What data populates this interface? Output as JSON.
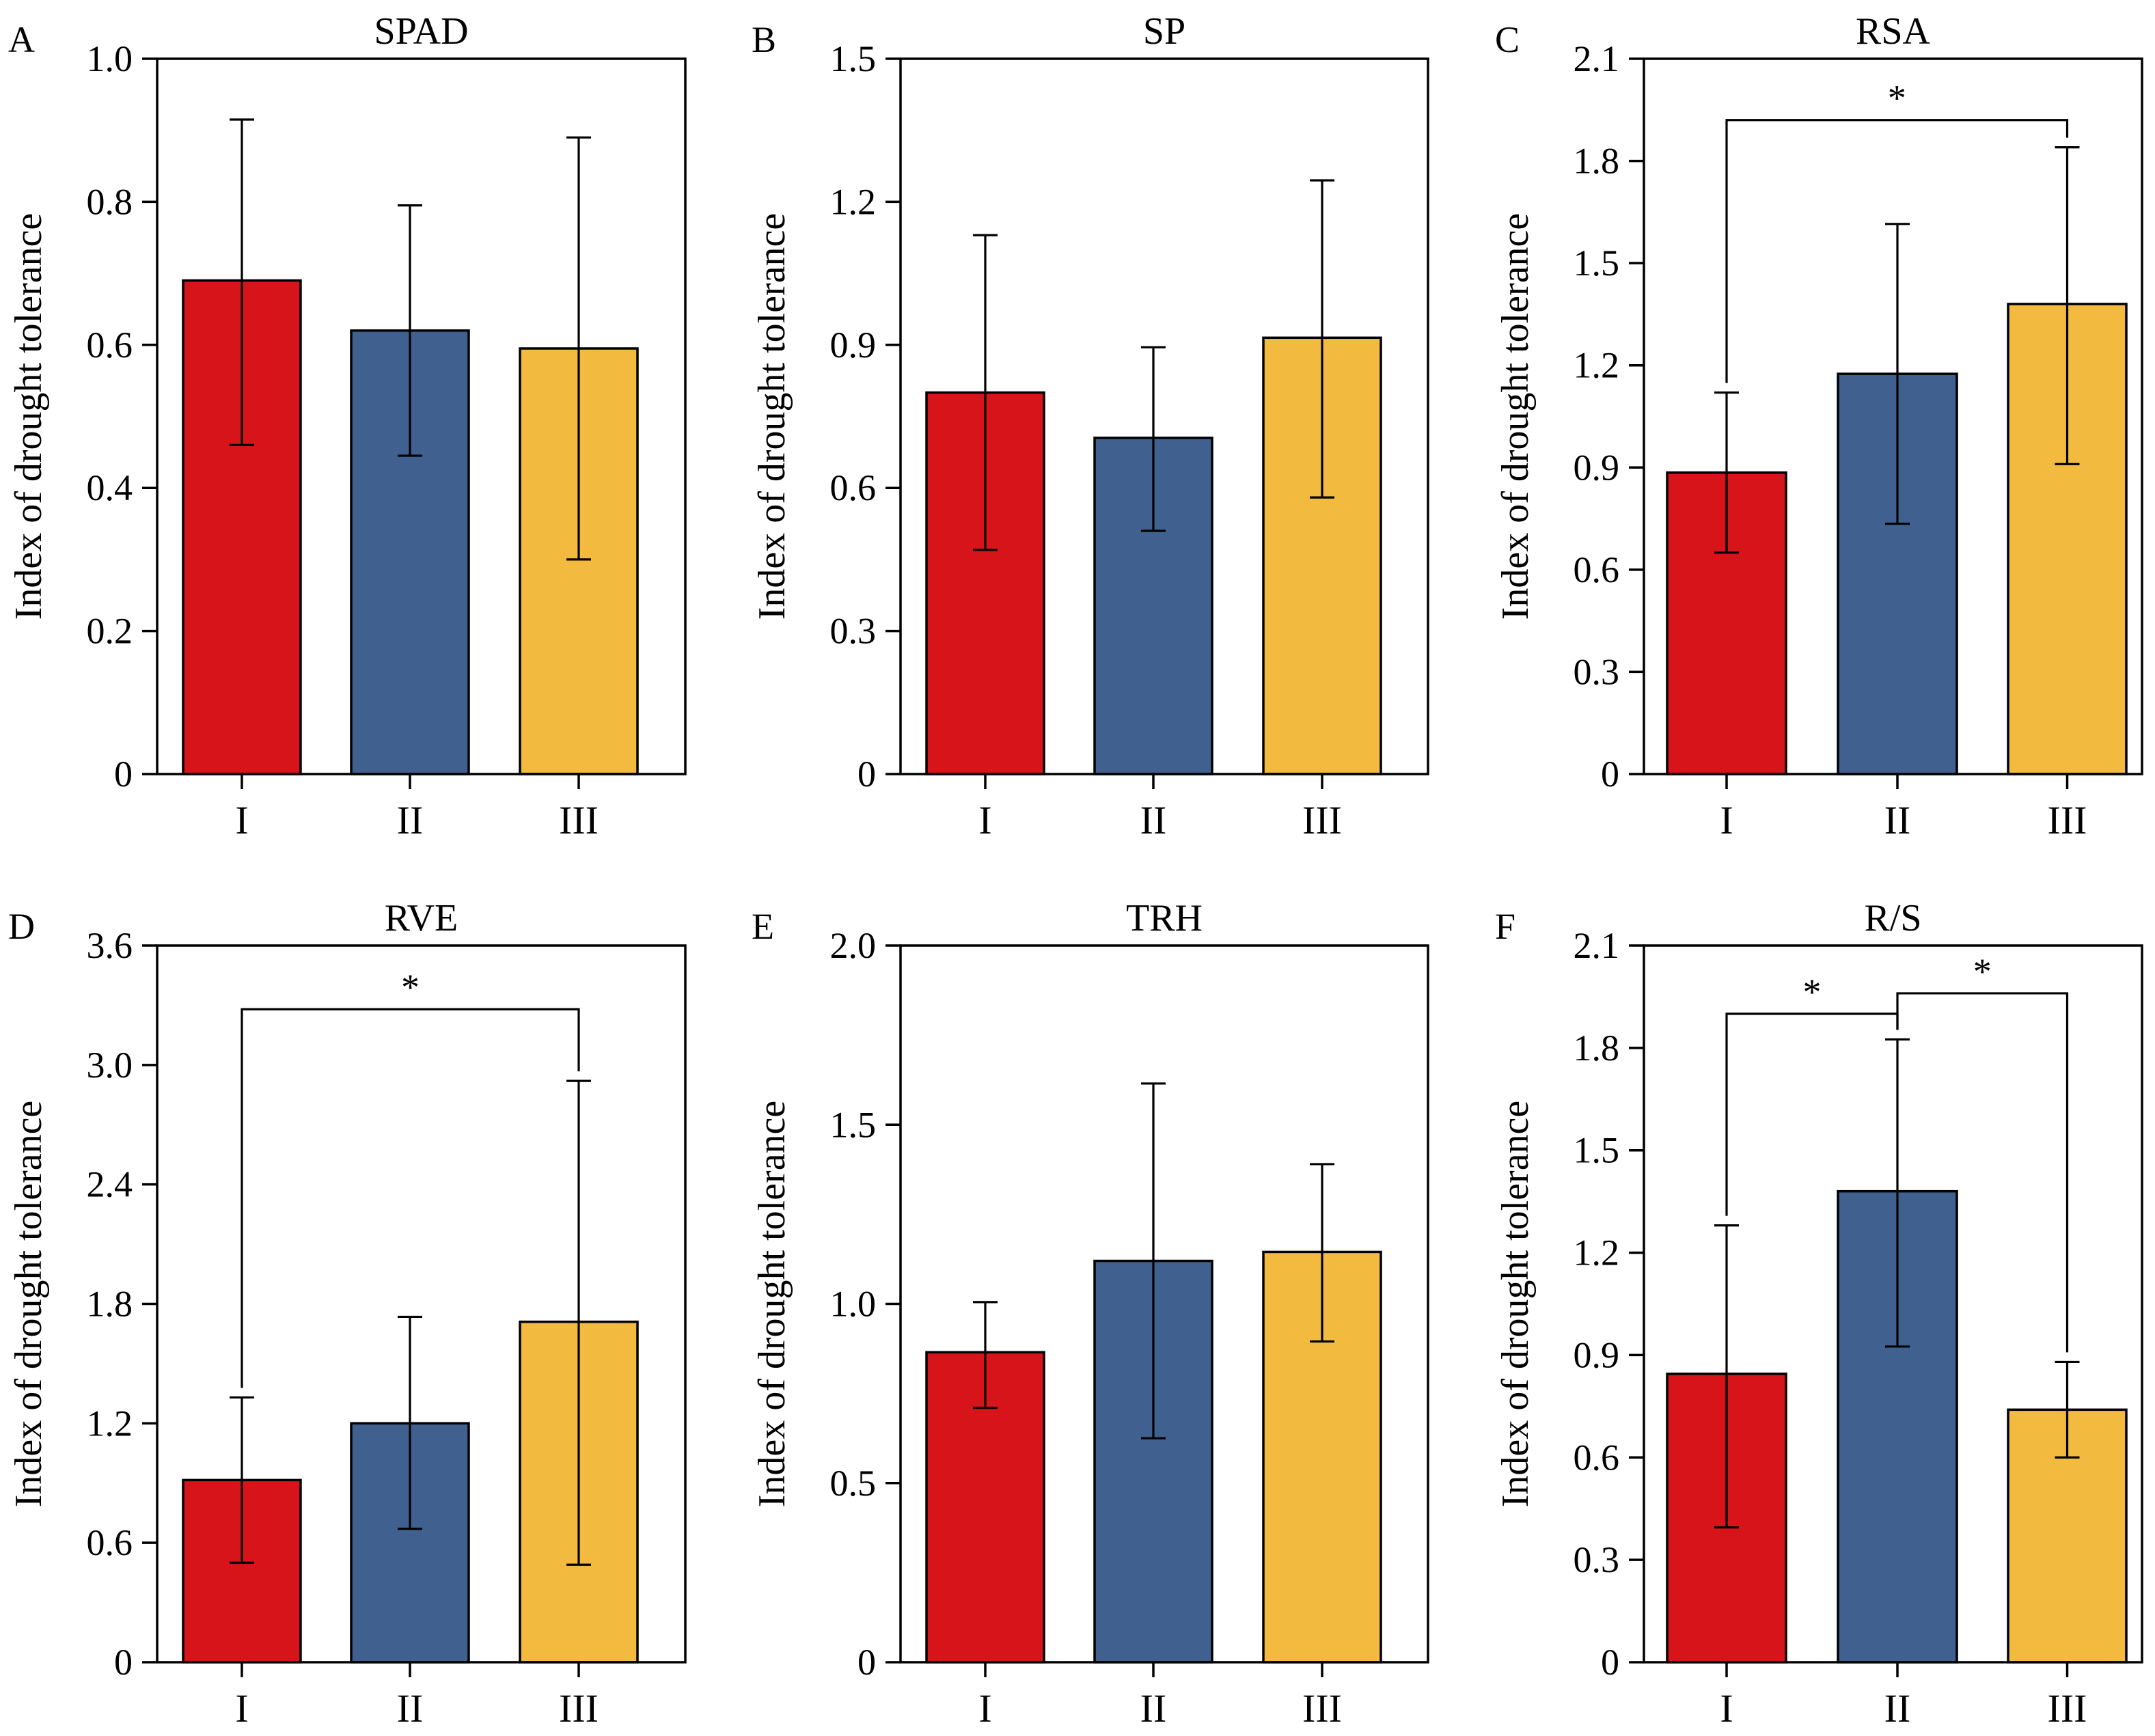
{
  "y_axis_label": "Index of drought tolerance",
  "colors": {
    "I": "#d7141a",
    "II": "#40618f",
    "III": "#f2bb40"
  },
  "chart_data": [
    {
      "type": "bar",
      "letter": "A",
      "title": "SPAD",
      "ylabel": "Index of drought tolerance",
      "categories": [
        "I",
        "II",
        "III"
      ],
      "values": [
        0.69,
        0.62,
        0.595
      ],
      "error_low": [
        0.46,
        0.445,
        0.3
      ],
      "error_high": [
        0.915,
        0.795,
        0.89
      ],
      "ylim": [
        0,
        1.0
      ],
      "yticks": [
        0,
        0.2,
        0.4,
        0.6,
        0.8,
        1.0
      ],
      "yticklabels": [
        "0",
        "0.2",
        "0.4",
        "0.6",
        "0.8",
        "1.0"
      ],
      "significance": []
    },
    {
      "type": "bar",
      "letter": "B",
      "title": "SP",
      "ylabel": "Index of drought tolerance",
      "categories": [
        "I",
        "II",
        "III"
      ],
      "values": [
        0.8,
        0.705,
        0.915
      ],
      "error_low": [
        0.47,
        0.51,
        0.58
      ],
      "error_high": [
        1.13,
        0.895,
        1.245
      ],
      "ylim": [
        0,
        1.5
      ],
      "yticks": [
        0,
        0.3,
        0.6,
        0.9,
        1.2,
        1.5
      ],
      "yticklabels": [
        "0",
        "0.3",
        "0.6",
        "0.9",
        "1.2",
        "1.5"
      ],
      "significance": []
    },
    {
      "type": "bar",
      "letter": "C",
      "title": "RSA",
      "ylabel": "Index of drought tolerance",
      "categories": [
        "I",
        "II",
        "III"
      ],
      "values": [
        0.885,
        1.175,
        1.38
      ],
      "error_low": [
        0.65,
        0.735,
        0.91
      ],
      "error_high": [
        1.12,
        1.615,
        1.84
      ],
      "ylim": [
        0,
        2.1
      ],
      "yticks": [
        0,
        0.3,
        0.6,
        0.9,
        1.2,
        1.5,
        1.8,
        2.1
      ],
      "yticklabels": [
        "0",
        "0.3",
        "0.6",
        "0.9",
        "1.2",
        "1.5",
        "1.8",
        "2.1"
      ],
      "significance": [
        {
          "from": 0,
          "to": 2,
          "y": 1.92,
          "label": "*"
        }
      ]
    },
    {
      "type": "bar",
      "letter": "D",
      "title": "RVE",
      "ylabel": "Index of drought tolerance",
      "categories": [
        "I",
        "II",
        "III"
      ],
      "values": [
        0.915,
        1.2,
        1.71
      ],
      "error_low": [
        0.5,
        0.67,
        0.49
      ],
      "error_high": [
        1.33,
        1.735,
        2.92
      ],
      "ylim": [
        0,
        3.6
      ],
      "yticks": [
        0,
        0.6,
        1.2,
        1.8,
        2.4,
        3.0,
        3.6
      ],
      "yticklabels": [
        "0",
        "0.6",
        "1.2",
        "1.8",
        "2.4",
        "3.0",
        "3.6"
      ],
      "significance": [
        {
          "from": 0,
          "to": 2,
          "y": 3.28,
          "label": "*"
        }
      ]
    },
    {
      "type": "bar",
      "letter": "E",
      "title": "TRH",
      "ylabel": "Index of drought tolerance",
      "categories": [
        "I",
        "II",
        "III"
      ],
      "values": [
        0.865,
        1.12,
        1.145
      ],
      "error_low": [
        0.71,
        0.625,
        0.895
      ],
      "error_high": [
        1.005,
        1.615,
        1.39
      ],
      "ylim": [
        0,
        2.0
      ],
      "yticks": [
        0,
        0.5,
        1.0,
        1.5,
        2.0
      ],
      "yticklabels": [
        "0",
        "0.5",
        "1.0",
        "1.5",
        "2.0"
      ],
      "significance": []
    },
    {
      "type": "bar",
      "letter": "F",
      "title": "R/S",
      "ylabel": "Index of drought tolerance",
      "categories": [
        "I",
        "II",
        "III"
      ],
      "values": [
        0.845,
        1.38,
        0.74
      ],
      "error_low": [
        0.395,
        0.925,
        0.6
      ],
      "error_high": [
        1.28,
        1.825,
        0.88
      ],
      "ylim": [
        0,
        2.1
      ],
      "yticks": [
        0,
        0.3,
        0.6,
        0.9,
        1.2,
        1.5,
        1.8,
        2.1
      ],
      "yticklabels": [
        "0",
        "0.3",
        "0.6",
        "0.9",
        "1.2",
        "1.5",
        "1.8",
        "2.1"
      ],
      "significance": [
        {
          "from": 0,
          "to": 1,
          "y": 1.9,
          "label": "*"
        },
        {
          "from": 1,
          "to": 2,
          "y": 1.96,
          "label": "*"
        }
      ]
    }
  ]
}
